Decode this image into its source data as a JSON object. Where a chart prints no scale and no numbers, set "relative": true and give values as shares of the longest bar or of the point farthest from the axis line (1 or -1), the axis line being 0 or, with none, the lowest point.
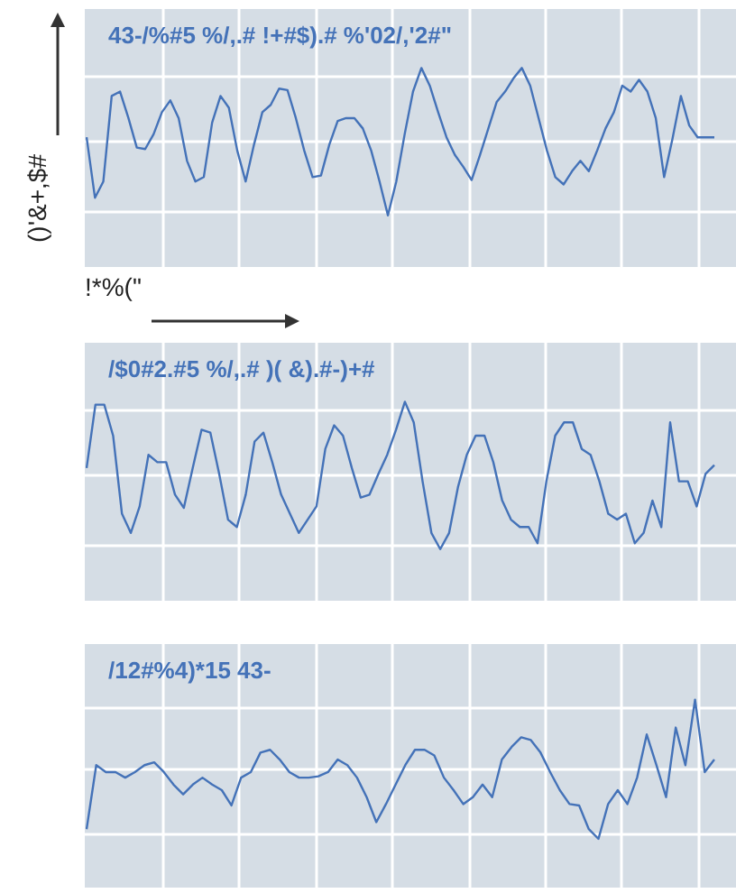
{
  "chart_data": [
    {
      "type": "line",
      "title": "43-/%#5 %/,.# !+#$).# %'02/,'2#\"",
      "xlabel": "!*%(\"",
      "ylabel": "()'&+,$#",
      "relative": true,
      "grid": true,
      "legend": false,
      "marker": "none",
      "categories": [
        null,
        null,
        null,
        null,
        null,
        null,
        null,
        null,
        null,
        null,
        null,
        null,
        null,
        null,
        null,
        null,
        null,
        null,
        null,
        null,
        null,
        null,
        null,
        null,
        null,
        null,
        null,
        null,
        null,
        null,
        null,
        null,
        null,
        null,
        null,
        null,
        null,
        null,
        null,
        null,
        null,
        null,
        null,
        null,
        null,
        null,
        null,
        null,
        null,
        null,
        null,
        null,
        null,
        null,
        null,
        null,
        null,
        null,
        null,
        null,
        null,
        null,
        null,
        null,
        null,
        null,
        null,
        null,
        null,
        null,
        null,
        null,
        null,
        null,
        null,
        null
      ],
      "series": [
        {
          "color": "#4472b8",
          "values": [
            0.53,
            0.12,
            0.23,
            0.81,
            0.84,
            0.66,
            0.46,
            0.45,
            0.55,
            0.7,
            0.78,
            0.66,
            0.37,
            0.23,
            0.26,
            0.63,
            0.81,
            0.73,
            0.44,
            0.23,
            0.48,
            0.7,
            0.75,
            0.86,
            0.85,
            0.66,
            0.44,
            0.26,
            0.27,
            0.48,
            0.64,
            0.66,
            0.66,
            0.59,
            0.44,
            0.23,
            0,
            0.23,
            0.55,
            0.84,
            1,
            0.88,
            0.7,
            0.53,
            0.41,
            0.33,
            0.24,
            0.41,
            0.59,
            0.77,
            0.84,
            0.93,
            1,
            0.88,
            0.66,
            0.44,
            0.26,
            0.21,
            0.3,
            0.37,
            0.3,
            0.44,
            0.59,
            0.7,
            0.88,
            0.84,
            0.92,
            0.84,
            0.66,
            0.26,
            0.52,
            0.81,
            0.61,
            0.53,
            0.53,
            0.53
          ]
        }
      ]
    },
    {
      "type": "line",
      "title": "/$0#2.#5 %/,.# )( &).#-)+#",
      "relative": true,
      "grid": true,
      "legend": false,
      "marker": "none",
      "categories": [
        null,
        null,
        null,
        null,
        null,
        null,
        null,
        null,
        null,
        null,
        null,
        null,
        null,
        null,
        null,
        null,
        null,
        null,
        null,
        null,
        null,
        null,
        null,
        null,
        null,
        null,
        null,
        null,
        null,
        null,
        null,
        null,
        null,
        null,
        null,
        null,
        null,
        null,
        null,
        null,
        null,
        null,
        null,
        null,
        null,
        null,
        null,
        null,
        null,
        null,
        null,
        null,
        null,
        null,
        null,
        null,
        null,
        null,
        null,
        null,
        null,
        null,
        null,
        null,
        null,
        null,
        null,
        null,
        null,
        null,
        null,
        null
      ],
      "series": [
        {
          "color": "#4472b8",
          "values": [
            0.55,
            0.98,
            0.98,
            0.77,
            0.24,
            0.11,
            0.29,
            0.64,
            0.59,
            0.59,
            0.37,
            0.28,
            0.55,
            0.81,
            0.79,
            0.51,
            0.2,
            0.15,
            0.37,
            0.73,
            0.79,
            0.59,
            0.37,
            0.24,
            0.11,
            0.2,
            0.29,
            0.68,
            0.84,
            0.77,
            0.55,
            0.35,
            0.37,
            0.51,
            0.64,
            0.81,
            1,
            0.86,
            0.46,
            0.11,
            0,
            0.11,
            0.42,
            0.64,
            0.77,
            0.77,
            0.59,
            0.33,
            0.2,
            0.15,
            0.15,
            0.04,
            0.46,
            0.77,
            0.86,
            0.86,
            0.68,
            0.64,
            0.46,
            0.24,
            0.2,
            0.24,
            0.04,
            0.11,
            0.33,
            0.15,
            0.86,
            0.46,
            0.46,
            0.29,
            0.51,
            0.57
          ]
        }
      ]
    },
    {
      "type": "line",
      "title": "/12#%4)*15 43-",
      "relative": true,
      "grid": true,
      "legend": false,
      "marker": "none",
      "categories": [
        null,
        null,
        null,
        null,
        null,
        null,
        null,
        null,
        null,
        null,
        null,
        null,
        null,
        null,
        null,
        null,
        null,
        null,
        null,
        null,
        null,
        null,
        null,
        null,
        null,
        null,
        null,
        null,
        null,
        null,
        null,
        null,
        null,
        null,
        null,
        null,
        null,
        null,
        null,
        null,
        null,
        null,
        null,
        null,
        null,
        null,
        null,
        null,
        null,
        null,
        null,
        null,
        null,
        null,
        null,
        null,
        null,
        null,
        null,
        null,
        null,
        null,
        null,
        null,
        null,
        null
      ],
      "series": [
        {
          "color": "#4472b8",
          "values": [
            0.07,
            0.53,
            0.48,
            0.48,
            0.44,
            0.48,
            0.53,
            0.55,
            0.48,
            0.39,
            0.32,
            0.39,
            0.44,
            0.39,
            0.35,
            0.24,
            0.44,
            0.48,
            0.62,
            0.64,
            0.57,
            0.48,
            0.44,
            0.44,
            0.45,
            0.48,
            0.57,
            0.53,
            0.44,
            0.3,
            0.12,
            0.25,
            0.39,
            0.53,
            0.64,
            0.64,
            0.6,
            0.44,
            0.35,
            0.25,
            0.3,
            0.39,
            0.3,
            0.57,
            0.66,
            0.73,
            0.71,
            0.62,
            0.48,
            0.35,
            0.25,
            0.24,
            0.07,
            0,
            0.25,
            0.35,
            0.25,
            0.44,
            0.75,
            0.53,
            0.3,
            0.8,
            0.53,
            1,
            0.48,
            0.57
          ]
        }
      ]
    }
  ]
}
